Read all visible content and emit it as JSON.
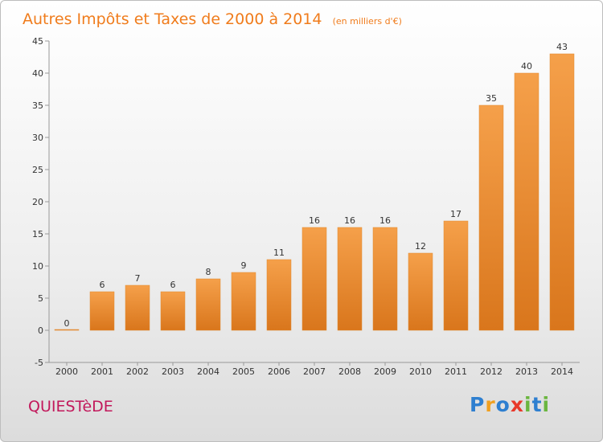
{
  "chart_data": {
    "type": "bar",
    "title": "Autres Impôts et Taxes de 2000 à 2014",
    "subtitle": "(en milliers d'€)",
    "categories": [
      "2000",
      "2001",
      "2002",
      "2003",
      "2004",
      "2005",
      "2006",
      "2007",
      "2008",
      "2009",
      "2010",
      "2011",
      "2012",
      "2013",
      "2014"
    ],
    "values": [
      0,
      6,
      7,
      6,
      8,
      9,
      11,
      16,
      16,
      16,
      12,
      17,
      35,
      40,
      43
    ],
    "ylim": [
      -5,
      45
    ],
    "yticks": [
      -5,
      0,
      5,
      10,
      15,
      20,
      25,
      30,
      35,
      40,
      45
    ],
    "grid": false,
    "bar_color": "#f5a04a",
    "bar_color_dark": "#d9761c"
  },
  "footer": {
    "commune": "QUIESTèDE",
    "logo": {
      "letters": [
        "P",
        "r",
        "o",
        "x",
        "i",
        "t",
        "i"
      ],
      "colors": [
        "#2e7fd0",
        "#f0a020",
        "#2e7fd0",
        "#e8382a",
        "#6bb640",
        "#2e7fd0",
        "#6bb640"
      ]
    }
  }
}
